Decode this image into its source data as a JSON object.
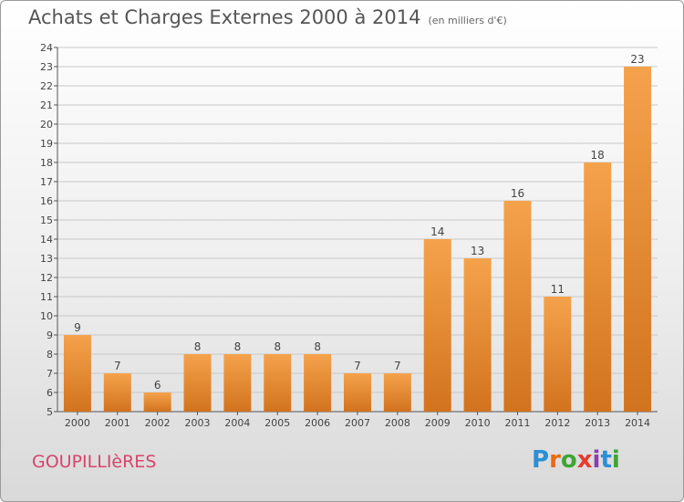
{
  "colors": {
    "bar_light": "#f5a24c",
    "bar_dark": "#d2731e",
    "axis": "#555555",
    "grid": "#c8c8c8",
    "commune": "#d8446a",
    "brand": [
      "#2b8fd6",
      "#e86a16",
      "#3fa535",
      "#e63b2e",
      "#8a3fb1",
      "#2b8fd6",
      "#3fa535"
    ]
  },
  "chart_data": {
    "type": "bar",
    "title": "Achats et Charges Externes 2000 à 2014",
    "subtitle": "(en milliers d'€)",
    "categories": [
      "2000",
      "2001",
      "2002",
      "2003",
      "2004",
      "2005",
      "2006",
      "2007",
      "2008",
      "2009",
      "2010",
      "2011",
      "2012",
      "2013",
      "2014"
    ],
    "values": [
      9,
      7,
      6,
      8,
      8,
      8,
      8,
      7,
      7,
      14,
      13,
      16,
      11,
      18,
      23
    ],
    "ylim": [
      5,
      24
    ],
    "yticks": [
      5,
      6,
      7,
      8,
      9,
      10,
      11,
      12,
      13,
      14,
      15,
      16,
      17,
      18,
      19,
      20,
      21,
      22,
      23,
      24
    ],
    "grid": true,
    "xlabel": "",
    "ylabel": ""
  },
  "footer": {
    "commune": "GOUPILLIèRES",
    "brand_letters": [
      "P",
      "r",
      "o",
      "x",
      "i",
      "t",
      "i"
    ]
  }
}
